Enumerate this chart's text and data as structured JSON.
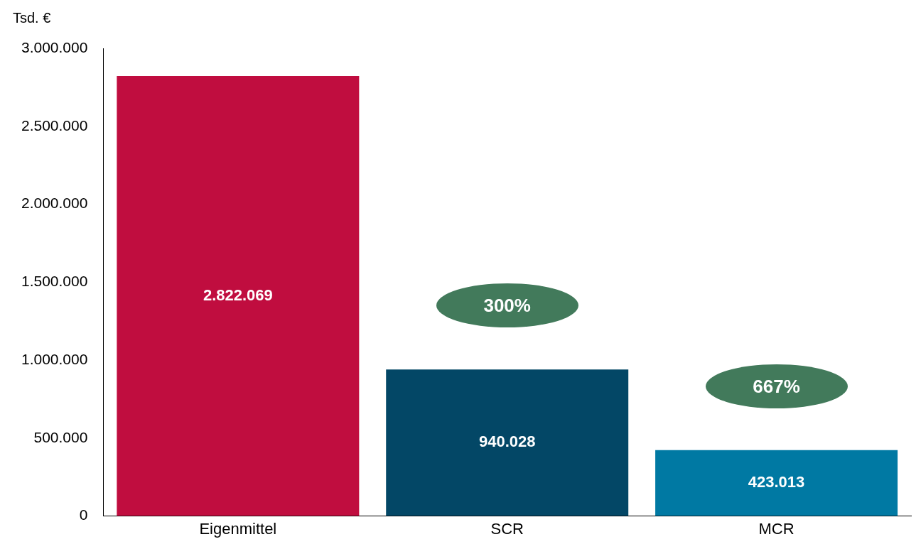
{
  "chart_data": {
    "type": "bar",
    "ylabel": "Tsd. €",
    "categories": [
      "Eigenmittel",
      "SCR",
      "MCR"
    ],
    "values": [
      2822069,
      940028,
      423013
    ],
    "colors": [
      "#c00d3f",
      "#034766",
      "#0079a3"
    ],
    "value_labels": [
      "2.822.069",
      "940.028",
      "423.013"
    ],
    "ylim": [
      0,
      3000000
    ],
    "yticks": [
      {
        "value": 0,
        "label": "0"
      },
      {
        "value": 500000,
        "label": "500.000"
      },
      {
        "value": 1000000,
        "label": "1.000.000"
      },
      {
        "value": 1500000,
        "label": "1.500.000"
      },
      {
        "value": 2000000,
        "label": "2.000.000"
      },
      {
        "value": 2500000,
        "label": "2.500.000"
      },
      {
        "value": 3000000,
        "label": "3.000.000"
      }
    ],
    "grid": false,
    "legend": false,
    "annotations": [
      "300%",
      "667%"
    ]
  }
}
